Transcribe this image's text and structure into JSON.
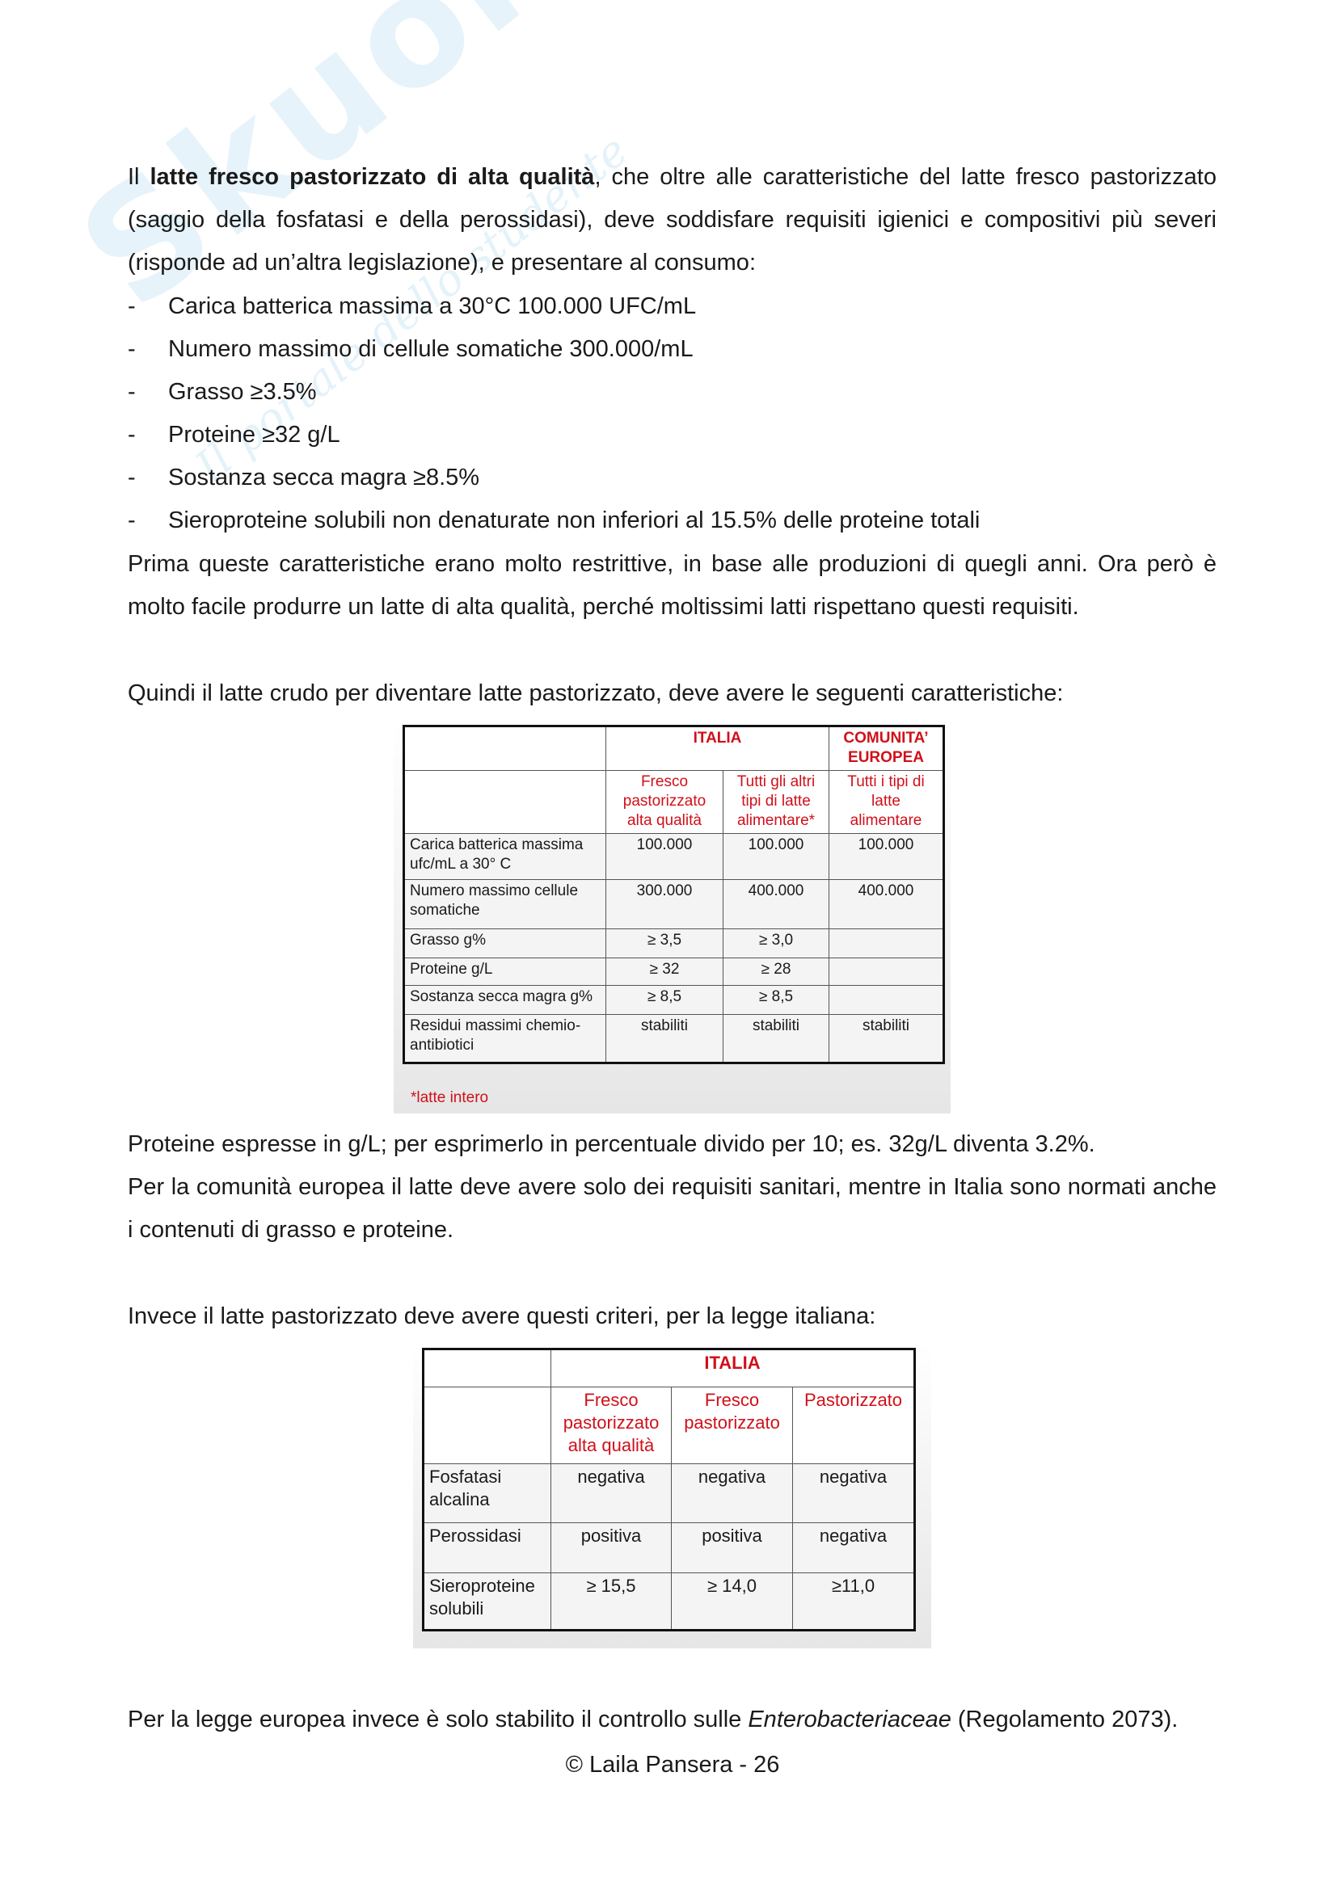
{
  "watermark": {
    "logo": "Skuola.net",
    "tagline": "Il portale dello studente"
  },
  "intro": {
    "prefix": "Il ",
    "bold": "latte fresco pastorizzato di alta qualità",
    "rest": ", che oltre alle caratteristiche del latte fresco pastorizzato (saggio della fosfatasi e della perossidasi), deve soddisfare requisiti igienici e compositivi più severi (risponde ad un’altra legislazione), e presentare al consumo:"
  },
  "requirements": [
    "Carica batterica massima a 30°C 100.000 UFC/mL",
    "Numero massimo di cellule somatiche 300.000/mL",
    "Grasso ≥3.5%",
    "Proteine ≥32 g/L",
    "Sostanza secca magra ≥8.5%",
    "Sieroproteine solubili non denaturate non inferiori al 15.5% delle proteine totali"
  ],
  "bullet": "-",
  "para2": "Prima queste caratteristiche erano molto restrittive, in base alle produzioni di quegli anni. Ora però è molto facile produrre un latte di alta qualità, perché moltissimi latti rispettano questi requisiti.",
  "para3": "Quindi il latte crudo per diventare latte pastorizzato, deve avere le seguenti caratteristiche:",
  "table1": {
    "group_italia": "ITALIA",
    "group_eu": "COMUNITA’ EUROPEA",
    "columns": [
      "Fresco pastorizzato alta qualità",
      "Tutti gli altri tipi di latte alimentare*",
      "Tutti i tipi di latte alimentare"
    ],
    "rows": [
      {
        "label": "Carica batterica massima ufc/mL a 30°  C",
        "values": [
          "100.000",
          "100.000",
          "100.000"
        ]
      },
      {
        "label": "Numero massimo cellule somatiche",
        "values": [
          "300.000",
          "400.000",
          "400.000"
        ]
      },
      {
        "label": "Grasso g%",
        "values": [
          "≥ 3,5",
          "≥ 3,0",
          ""
        ]
      },
      {
        "label": "Proteine g/L",
        "values": [
          "≥ 32",
          "≥ 28",
          ""
        ]
      },
      {
        "label": "Sostanza secca magra g%",
        "values": [
          "≥ 8,5",
          "≥ 8,5",
          ""
        ]
      },
      {
        "label": "Residui massimi chemio-antibiotici",
        "values": [
          "stabiliti",
          "stabiliti",
          "stabiliti"
        ]
      }
    ],
    "footnote": "*latte intero"
  },
  "para4": "Proteine espresse in g/L; per esprimerlo in percentuale divido per 10; es. 32g/L diventa 3.2%.",
  "para5": "Per la comunità europea il latte deve avere solo dei requisiti sanitari, mentre in Italia sono normati anche i contenuti di grasso e proteine.",
  "para6": "Invece il latte pastorizzato deve avere questi criteri, per la legge italiana:",
  "table2": {
    "group_italia": "ITALIA",
    "columns": [
      "Fresco pastorizzato alta qualità",
      "Fresco pastorizzato",
      "Pastorizzato"
    ],
    "rows": [
      {
        "label": "Fosfatasi alcalina",
        "values": [
          "negativa",
          "negativa",
          "negativa"
        ]
      },
      {
        "label": "Perossidasi",
        "values": [
          "positiva",
          "positiva",
          "negativa"
        ]
      },
      {
        "label": "Sieroproteine solubili",
        "values": [
          "≥ 15,5",
          "≥ 14,0",
          "≥11,0"
        ]
      }
    ]
  },
  "para7": {
    "prefix": "Per la legge europea invece è solo stabilito il controllo sulle ",
    "italic": "Enterobacteriaceae",
    "suffix": " (Regolamento 2073)."
  },
  "footer": "© Laila Pansera - 26"
}
